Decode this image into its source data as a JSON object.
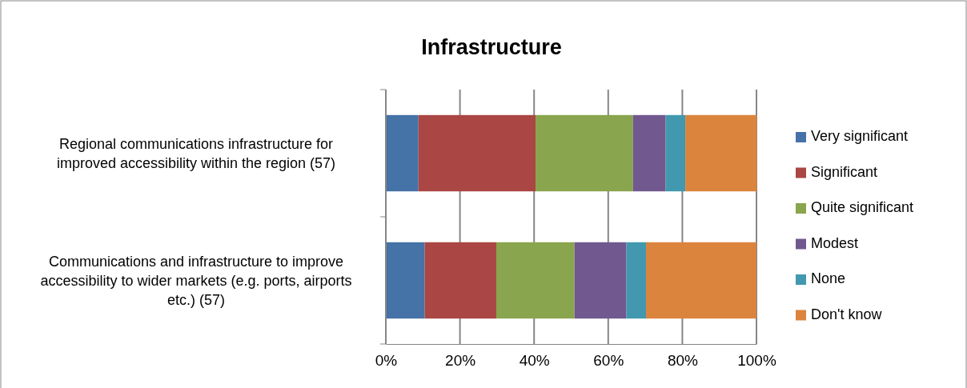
{
  "chart_data": {
    "type": "bar",
    "orientation": "horizontal",
    "stacked": true,
    "title": "Infrastructure",
    "categories": [
      "Regional communications infrastructure for improved accessibility within the region (57)",
      "Communications and infrastructure to improve accessibility to wider markets (e.g. ports, airports etc.) (57)"
    ],
    "series": [
      {
        "name": "Very significant",
        "color": "#4572a7",
        "values": [
          8.8,
          10.5
        ]
      },
      {
        "name": "Significant",
        "color": "#aa4643",
        "values": [
          31.6,
          19.3
        ]
      },
      {
        "name": "Quite significant",
        "color": "#89a54e",
        "values": [
          26.3,
          21.1
        ]
      },
      {
        "name": "Modest",
        "color": "#71588f",
        "values": [
          8.8,
          14.0
        ]
      },
      {
        "name": "None",
        "color": "#4198af",
        "values": [
          5.3,
          5.3
        ]
      },
      {
        "name": "Don't know",
        "color": "#db843d",
        "values": [
          19.3,
          29.8
        ]
      }
    ],
    "xlim": [
      0,
      100
    ],
    "xticks": [
      {
        "value": 0,
        "label": "0%"
      },
      {
        "value": 20,
        "label": "20%"
      },
      {
        "value": 40,
        "label": "40%"
      },
      {
        "value": 60,
        "label": "60%"
      },
      {
        "value": 80,
        "label": "80%"
      },
      {
        "value": 100,
        "label": "100%"
      }
    ],
    "grid": "x",
    "legend": "right"
  }
}
